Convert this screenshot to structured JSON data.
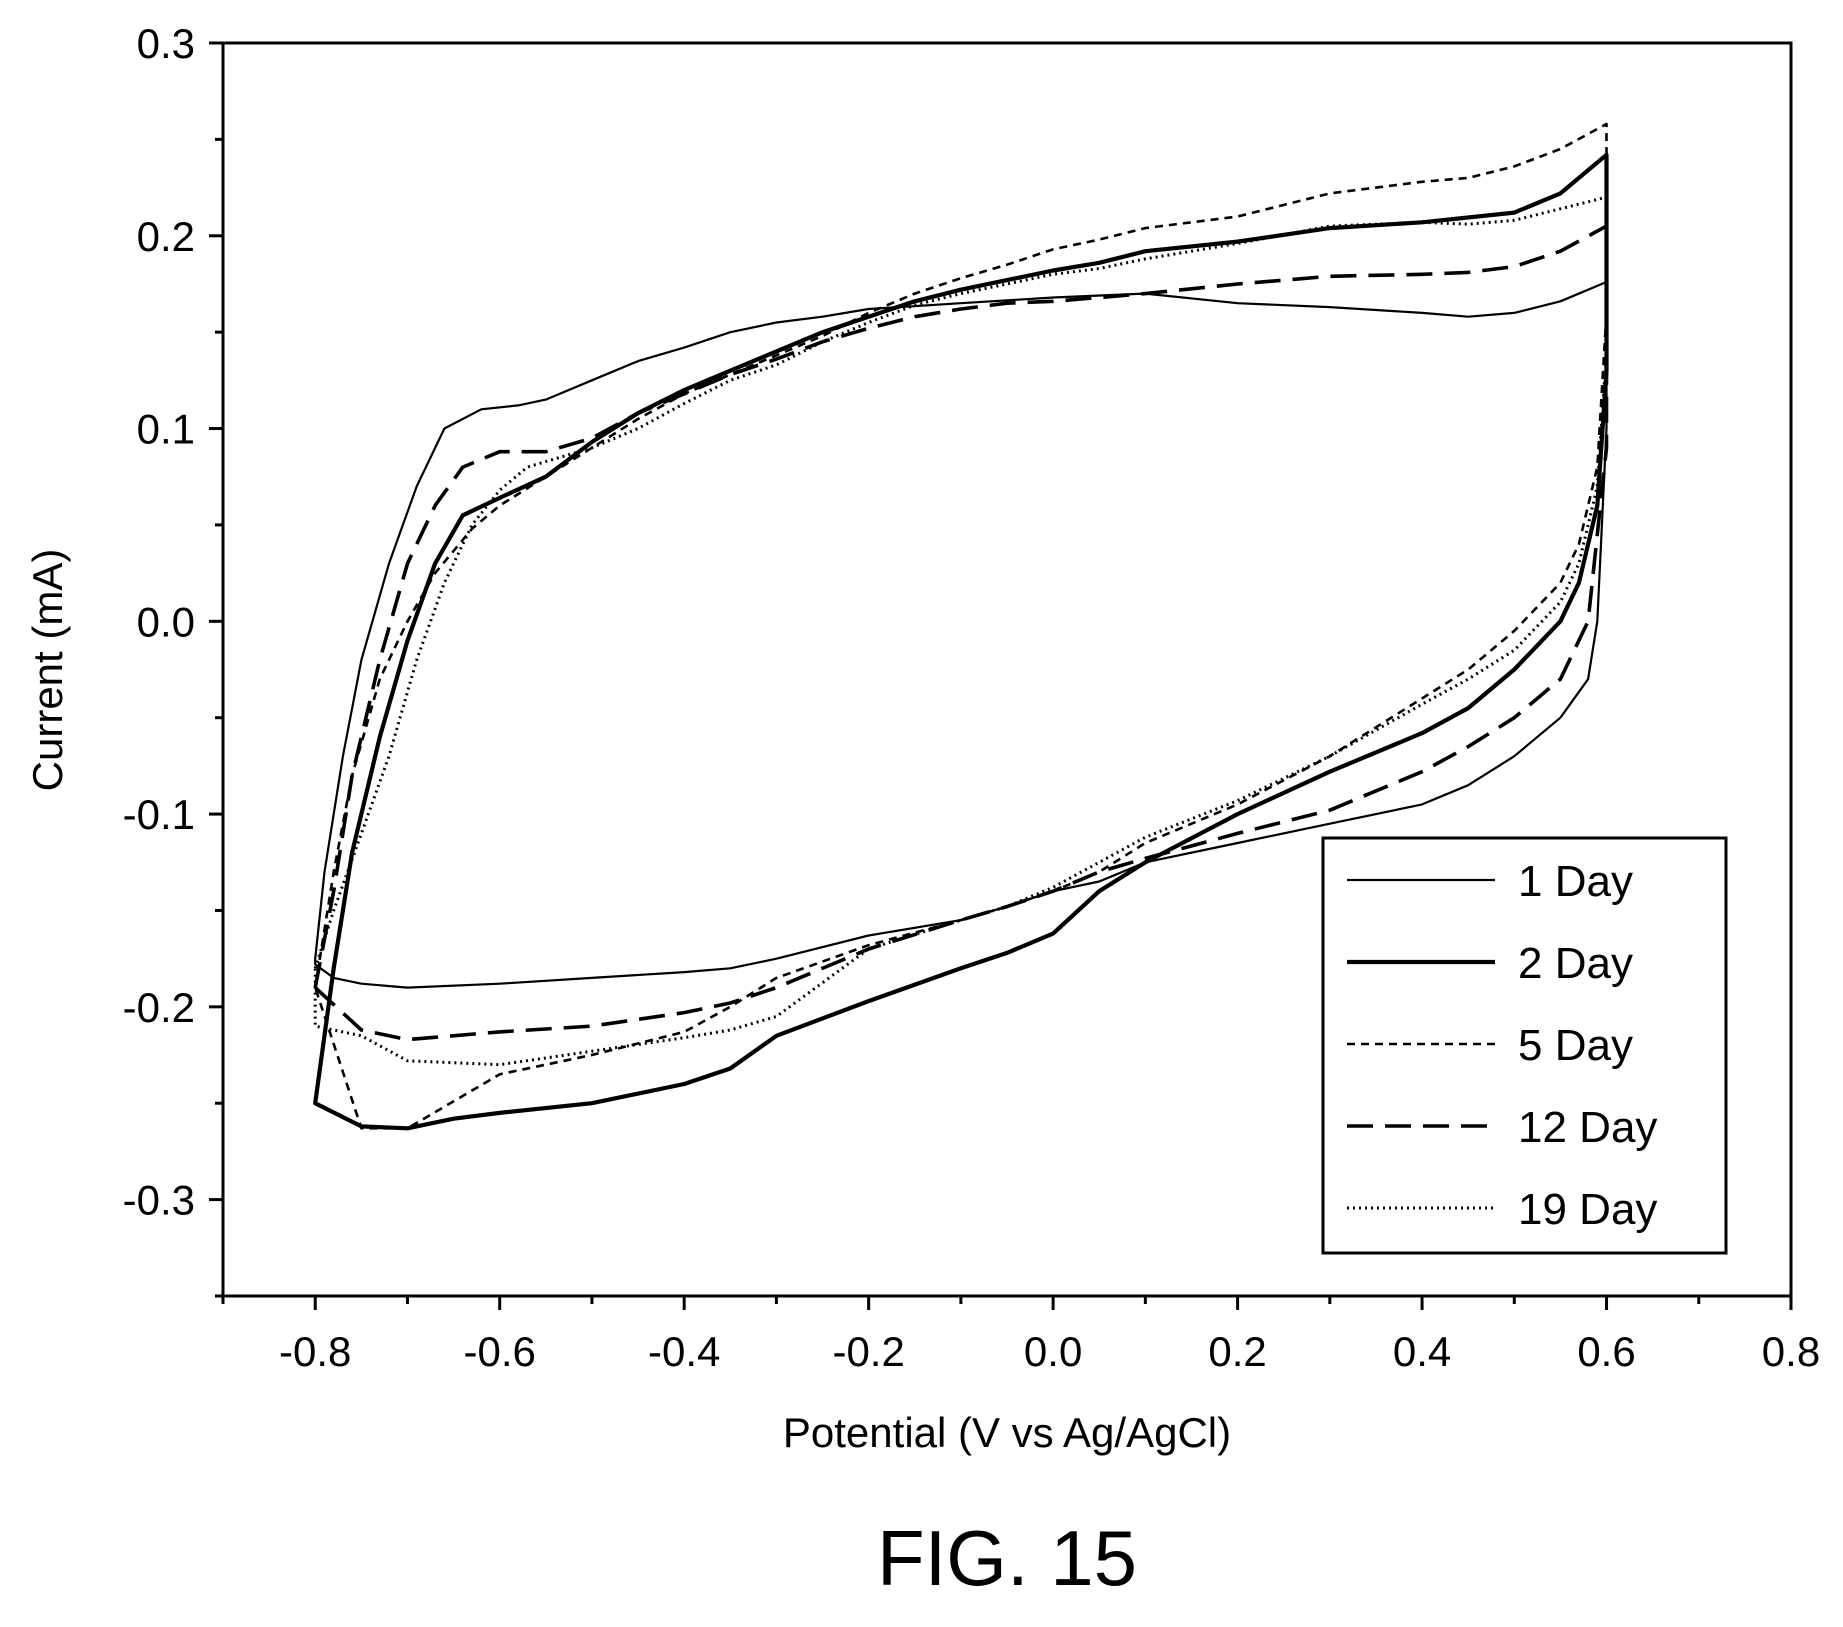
{
  "chart_data": {
    "type": "line",
    "title": "",
    "caption": "FIG. 15",
    "xlabel": "Potential (V vs Ag/AgCl)",
    "ylabel": "Current (mA)",
    "xlim": [
      -0.9,
      0.8
    ],
    "ylim": [
      -0.35,
      0.3
    ],
    "xticks": [
      -0.8,
      -0.6,
      -0.4,
      -0.2,
      0.0,
      0.2,
      0.4,
      0.6,
      0.8
    ],
    "xtick_labels": [
      "-0.8",
      "-0.6",
      "-0.4",
      "-0.2",
      "0.0",
      "0.2",
      "0.4",
      "0.6",
      "0.8"
    ],
    "yticks": [
      0.3,
      0.2,
      0.1,
      0.0,
      -0.1,
      -0.2,
      -0.3
    ],
    "ytick_labels": [
      "0.3",
      "0.2",
      "0.1",
      "0.0",
      "-0.1",
      "-0.2",
      "-0.3"
    ],
    "grid": false,
    "legend_position": "bottom-right",
    "series": [
      {
        "name": "1 Day",
        "style": "solid-thin",
        "points": [
          [
            -0.8,
            -0.175
          ],
          [
            -0.79,
            -0.13
          ],
          [
            -0.77,
            -0.07
          ],
          [
            -0.75,
            -0.02
          ],
          [
            -0.72,
            0.03
          ],
          [
            -0.69,
            0.07
          ],
          [
            -0.66,
            0.1
          ],
          [
            -0.62,
            0.11
          ],
          [
            -0.58,
            0.112
          ],
          [
            -0.55,
            0.115
          ],
          [
            -0.5,
            0.125
          ],
          [
            -0.45,
            0.135
          ],
          [
            -0.4,
            0.142
          ],
          [
            -0.35,
            0.15
          ],
          [
            -0.3,
            0.155
          ],
          [
            -0.25,
            0.158
          ],
          [
            -0.2,
            0.162
          ],
          [
            -0.1,
            0.165
          ],
          [
            0.0,
            0.168
          ],
          [
            0.1,
            0.17
          ],
          [
            0.2,
            0.165
          ],
          [
            0.3,
            0.163
          ],
          [
            0.4,
            0.16
          ],
          [
            0.45,
            0.158
          ],
          [
            0.5,
            0.16
          ],
          [
            0.55,
            0.166
          ],
          [
            0.6,
            0.176
          ],
          [
            0.6,
            0.1
          ],
          [
            0.59,
            0.0
          ],
          [
            0.58,
            -0.03
          ],
          [
            0.55,
            -0.05
          ],
          [
            0.5,
            -0.07
          ],
          [
            0.45,
            -0.085
          ],
          [
            0.4,
            -0.095
          ],
          [
            0.3,
            -0.105
          ],
          [
            0.2,
            -0.115
          ],
          [
            0.1,
            -0.125
          ],
          [
            0.05,
            -0.135
          ],
          [
            0.0,
            -0.14
          ],
          [
            -0.05,
            -0.148
          ],
          [
            -0.1,
            -0.155
          ],
          [
            -0.2,
            -0.163
          ],
          [
            -0.3,
            -0.175
          ],
          [
            -0.35,
            -0.18
          ],
          [
            -0.4,
            -0.182
          ],
          [
            -0.5,
            -0.185
          ],
          [
            -0.6,
            -0.188
          ],
          [
            -0.7,
            -0.19
          ],
          [
            -0.75,
            -0.188
          ],
          [
            -0.78,
            -0.185
          ],
          [
            -0.8,
            -0.178
          ]
        ]
      },
      {
        "name": "2 Day",
        "style": "solid-thick",
        "points": [
          [
            -0.8,
            -0.25
          ],
          [
            -0.78,
            -0.18
          ],
          [
            -0.76,
            -0.12
          ],
          [
            -0.73,
            -0.06
          ],
          [
            -0.7,
            -0.01
          ],
          [
            -0.67,
            0.03
          ],
          [
            -0.64,
            0.055
          ],
          [
            -0.6,
            0.064
          ],
          [
            -0.55,
            0.075
          ],
          [
            -0.5,
            0.093
          ],
          [
            -0.45,
            0.108
          ],
          [
            -0.4,
            0.12
          ],
          [
            -0.35,
            0.13
          ],
          [
            -0.3,
            0.14
          ],
          [
            -0.25,
            0.15
          ],
          [
            -0.2,
            0.158
          ],
          [
            -0.15,
            0.166
          ],
          [
            -0.1,
            0.172
          ],
          [
            -0.05,
            0.177
          ],
          [
            0.0,
            0.182
          ],
          [
            0.05,
            0.186
          ],
          [
            0.1,
            0.192
          ],
          [
            0.2,
            0.197
          ],
          [
            0.3,
            0.204
          ],
          [
            0.4,
            0.207
          ],
          [
            0.5,
            0.212
          ],
          [
            0.55,
            0.222
          ],
          [
            0.6,
            0.242
          ],
          [
            0.6,
            0.13
          ],
          [
            0.59,
            0.06
          ],
          [
            0.57,
            0.02
          ],
          [
            0.55,
            0.0
          ],
          [
            0.5,
            -0.025
          ],
          [
            0.45,
            -0.045
          ],
          [
            0.4,
            -0.058
          ],
          [
            0.3,
            -0.078
          ],
          [
            0.2,
            -0.1
          ],
          [
            0.1,
            -0.125
          ],
          [
            0.05,
            -0.14
          ],
          [
            0.0,
            -0.162
          ],
          [
            -0.05,
            -0.172
          ],
          [
            -0.1,
            -0.18
          ],
          [
            -0.2,
            -0.197
          ],
          [
            -0.3,
            -0.215
          ],
          [
            -0.35,
            -0.232
          ],
          [
            -0.4,
            -0.24
          ],
          [
            -0.5,
            -0.25
          ],
          [
            -0.6,
            -0.255
          ],
          [
            -0.65,
            -0.258
          ],
          [
            -0.7,
            -0.263
          ],
          [
            -0.75,
            -0.262
          ],
          [
            -0.8,
            -0.25
          ]
        ]
      },
      {
        "name": "5 Day",
        "style": "short-dash",
        "points": [
          [
            -0.8,
            -0.19
          ],
          [
            -0.78,
            -0.13
          ],
          [
            -0.76,
            -0.08
          ],
          [
            -0.73,
            -0.03
          ],
          [
            -0.7,
            0.0
          ],
          [
            -0.67,
            0.025
          ],
          [
            -0.63,
            0.048
          ],
          [
            -0.6,
            0.06
          ],
          [
            -0.55,
            0.075
          ],
          [
            -0.5,
            0.09
          ],
          [
            -0.45,
            0.105
          ],
          [
            -0.4,
            0.118
          ],
          [
            -0.35,
            0.128
          ],
          [
            -0.3,
            0.138
          ],
          [
            -0.25,
            0.148
          ],
          [
            -0.2,
            0.16
          ],
          [
            -0.15,
            0.17
          ],
          [
            -0.1,
            0.178
          ],
          [
            -0.05,
            0.185
          ],
          [
            0.0,
            0.193
          ],
          [
            0.05,
            0.198
          ],
          [
            0.1,
            0.204
          ],
          [
            0.2,
            0.21
          ],
          [
            0.3,
            0.222
          ],
          [
            0.4,
            0.228
          ],
          [
            0.45,
            0.23
          ],
          [
            0.5,
            0.236
          ],
          [
            0.55,
            0.245
          ],
          [
            0.6,
            0.258
          ],
          [
            0.6,
            0.16
          ],
          [
            0.59,
            0.08
          ],
          [
            0.57,
            0.04
          ],
          [
            0.55,
            0.02
          ],
          [
            0.5,
            -0.005
          ],
          [
            0.45,
            -0.025
          ],
          [
            0.4,
            -0.04
          ],
          [
            0.3,
            -0.07
          ],
          [
            0.2,
            -0.095
          ],
          [
            0.1,
            -0.115
          ],
          [
            0.05,
            -0.13
          ],
          [
            0.0,
            -0.14
          ],
          [
            -0.05,
            -0.148
          ],
          [
            -0.1,
            -0.155
          ],
          [
            -0.2,
            -0.168
          ],
          [
            -0.3,
            -0.185
          ],
          [
            -0.35,
            -0.2
          ],
          [
            -0.4,
            -0.213
          ],
          [
            -0.5,
            -0.225
          ],
          [
            -0.6,
            -0.235
          ],
          [
            -0.7,
            -0.263
          ],
          [
            -0.75,
            -0.263
          ],
          [
            -0.8,
            -0.19
          ]
        ]
      },
      {
        "name": "12 Day",
        "style": "long-dash",
        "points": [
          [
            -0.8,
            -0.19
          ],
          [
            -0.78,
            -0.14
          ],
          [
            -0.76,
            -0.08
          ],
          [
            -0.73,
            -0.02
          ],
          [
            -0.7,
            0.03
          ],
          [
            -0.67,
            0.06
          ],
          [
            -0.64,
            0.08
          ],
          [
            -0.6,
            0.088
          ],
          [
            -0.55,
            0.088
          ],
          [
            -0.5,
            0.095
          ],
          [
            -0.45,
            0.108
          ],
          [
            -0.4,
            0.118
          ],
          [
            -0.35,
            0.128
          ],
          [
            -0.3,
            0.136
          ],
          [
            -0.25,
            0.145
          ],
          [
            -0.2,
            0.152
          ],
          [
            -0.15,
            0.158
          ],
          [
            -0.1,
            0.162
          ],
          [
            -0.05,
            0.165
          ],
          [
            0.0,
            0.166
          ],
          [
            0.05,
            0.168
          ],
          [
            0.1,
            0.17
          ],
          [
            0.2,
            0.175
          ],
          [
            0.3,
            0.179
          ],
          [
            0.4,
            0.18
          ],
          [
            0.45,
            0.181
          ],
          [
            0.5,
            0.184
          ],
          [
            0.55,
            0.192
          ],
          [
            0.6,
            0.205
          ],
          [
            0.6,
            0.09
          ],
          [
            0.58,
            0.0
          ],
          [
            0.55,
            -0.03
          ],
          [
            0.5,
            -0.05
          ],
          [
            0.45,
            -0.065
          ],
          [
            0.4,
            -0.078
          ],
          [
            0.3,
            -0.098
          ],
          [
            0.2,
            -0.11
          ],
          [
            0.1,
            -0.123
          ],
          [
            0.05,
            -0.13
          ],
          [
            0.0,
            -0.14
          ],
          [
            -0.05,
            -0.148
          ],
          [
            -0.1,
            -0.155
          ],
          [
            -0.2,
            -0.17
          ],
          [
            -0.3,
            -0.19
          ],
          [
            -0.35,
            -0.198
          ],
          [
            -0.4,
            -0.203
          ],
          [
            -0.5,
            -0.21
          ],
          [
            -0.6,
            -0.213
          ],
          [
            -0.7,
            -0.217
          ],
          [
            -0.75,
            -0.212
          ],
          [
            -0.8,
            -0.19
          ]
        ]
      },
      {
        "name": "19 Day",
        "style": "dotted",
        "points": [
          [
            -0.8,
            -0.18
          ],
          [
            -0.78,
            -0.15
          ],
          [
            -0.75,
            -0.11
          ],
          [
            -0.72,
            -0.07
          ],
          [
            -0.69,
            -0.02
          ],
          [
            -0.66,
            0.02
          ],
          [
            -0.63,
            0.05
          ],
          [
            -0.6,
            0.068
          ],
          [
            -0.57,
            0.08
          ],
          [
            -0.5,
            0.09
          ],
          [
            -0.45,
            0.1
          ],
          [
            -0.4,
            0.113
          ],
          [
            -0.35,
            0.125
          ],
          [
            -0.3,
            0.133
          ],
          [
            -0.25,
            0.145
          ],
          [
            -0.2,
            0.155
          ],
          [
            -0.15,
            0.164
          ],
          [
            -0.1,
            0.17
          ],
          [
            -0.05,
            0.175
          ],
          [
            0.0,
            0.18
          ],
          [
            0.05,
            0.183
          ],
          [
            0.1,
            0.188
          ],
          [
            0.2,
            0.196
          ],
          [
            0.3,
            0.205
          ],
          [
            0.4,
            0.207
          ],
          [
            0.45,
            0.206
          ],
          [
            0.5,
            0.208
          ],
          [
            0.55,
            0.214
          ],
          [
            0.6,
            0.22
          ],
          [
            0.6,
            0.14
          ],
          [
            0.59,
            0.07
          ],
          [
            0.57,
            0.03
          ],
          [
            0.55,
            0.01
          ],
          [
            0.5,
            -0.015
          ],
          [
            0.45,
            -0.03
          ],
          [
            0.4,
            -0.043
          ],
          [
            0.3,
            -0.07
          ],
          [
            0.2,
            -0.093
          ],
          [
            0.1,
            -0.112
          ],
          [
            0.05,
            -0.125
          ],
          [
            0.0,
            -0.138
          ],
          [
            -0.05,
            -0.148
          ],
          [
            -0.1,
            -0.155
          ],
          [
            -0.2,
            -0.17
          ],
          [
            -0.3,
            -0.205
          ],
          [
            -0.35,
            -0.212
          ],
          [
            -0.4,
            -0.216
          ],
          [
            -0.5,
            -0.223
          ],
          [
            -0.6,
            -0.23
          ],
          [
            -0.7,
            -0.228
          ],
          [
            -0.75,
            -0.215
          ],
          [
            -0.8,
            -0.21
          ]
        ]
      }
    ]
  }
}
